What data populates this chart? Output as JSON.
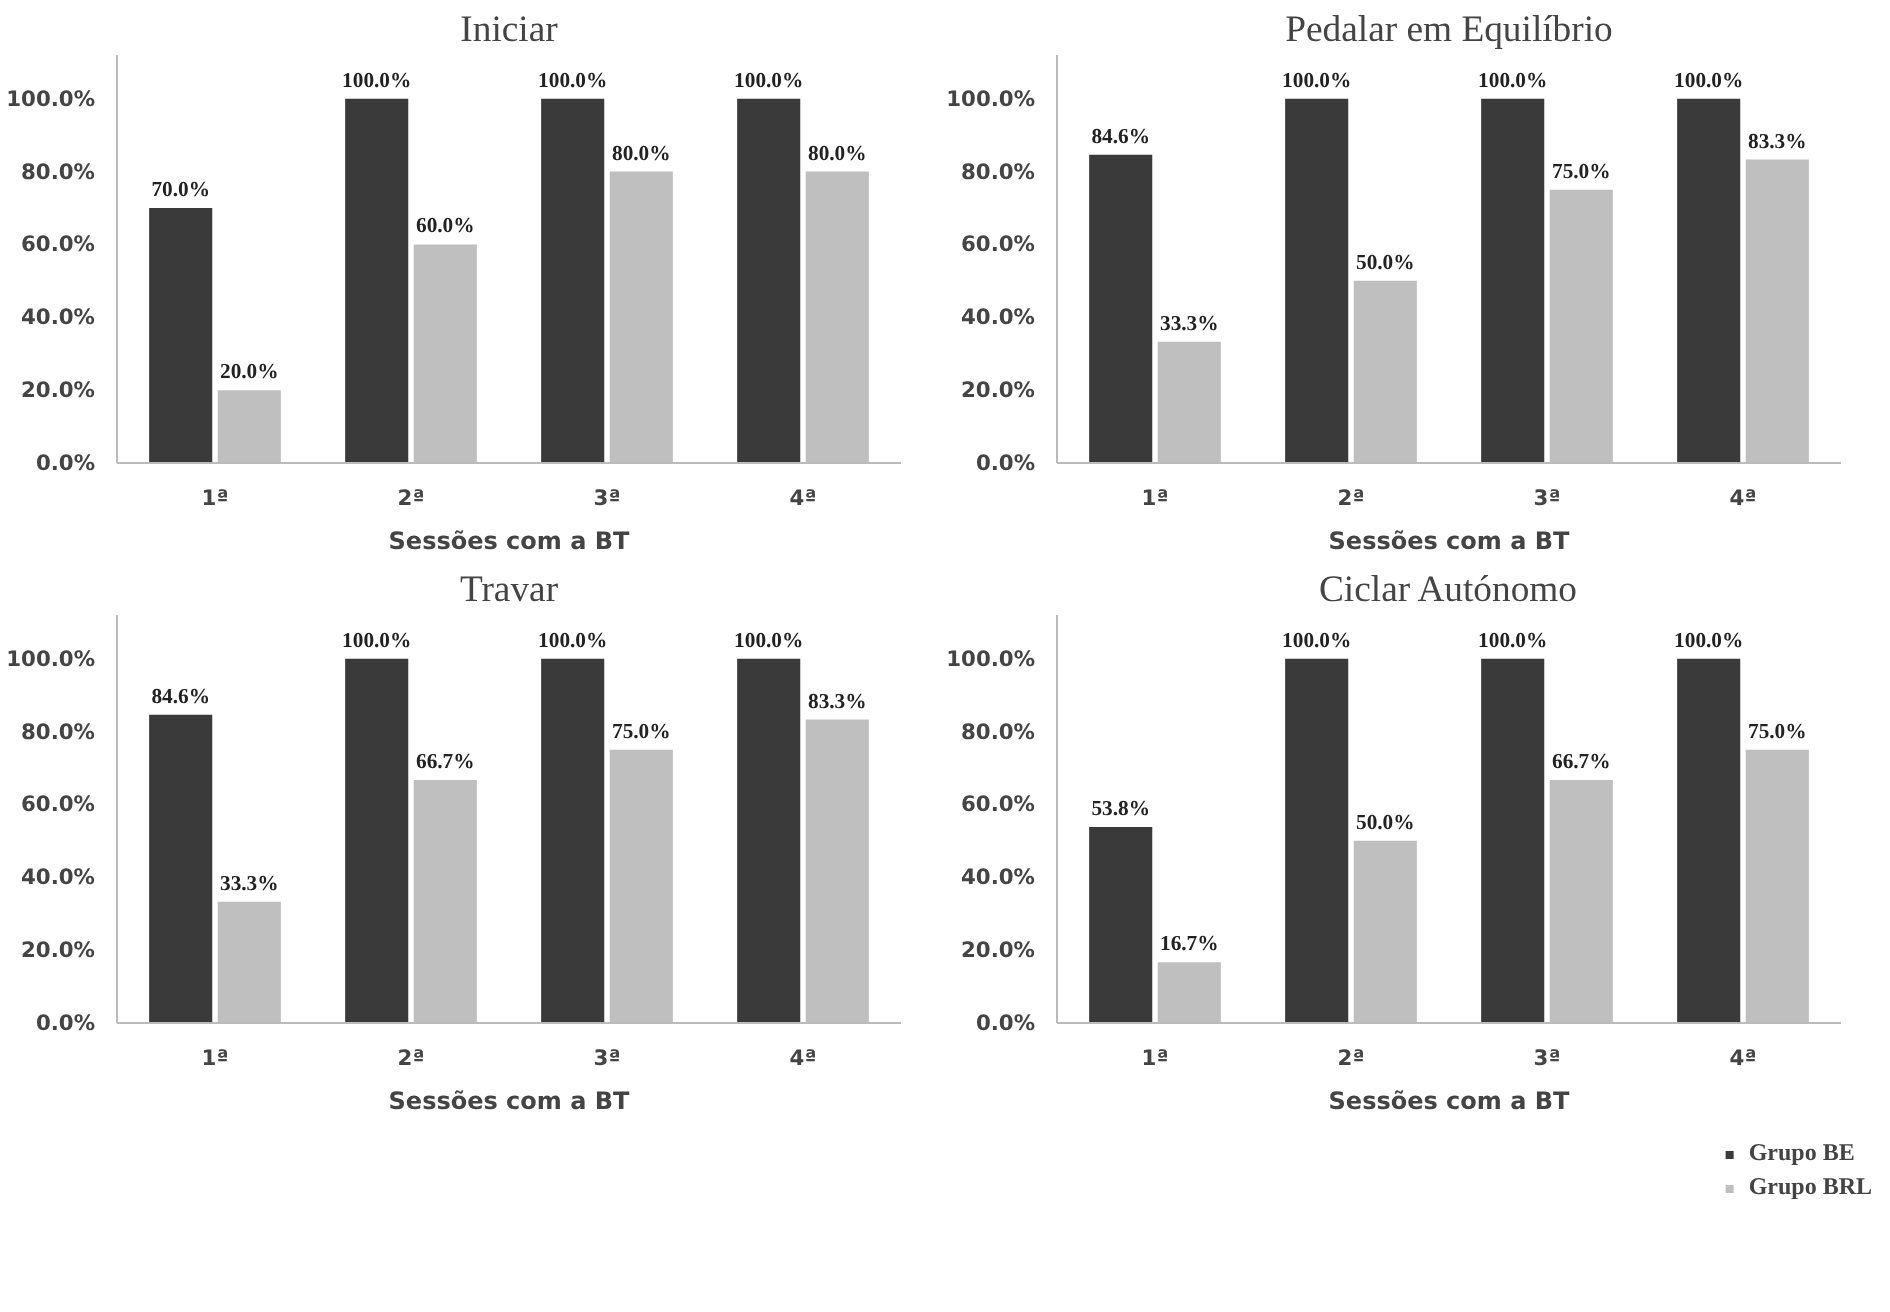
{
  "chart_data": [
    {
      "type": "bar",
      "title": "Iniciar",
      "xlabel": "Sessões com a BT",
      "categories": [
        "1ª",
        "2ª",
        "3ª",
        "4ª"
      ],
      "series": [
        {
          "color": "#3a3a3a",
          "values": [
            70,
            100,
            100,
            100
          ],
          "value_labels": [
            "70.0%",
            "100.0%",
            "100.0%",
            "100.0%"
          ]
        },
        {
          "color": "#bfbfbf",
          "values": [
            20,
            60,
            80,
            80
          ],
          "value_labels": [
            "20.0%",
            "60.0%",
            "80.0%",
            "80.0%"
          ]
        }
      ],
      "ylim": [
        0,
        112
      ],
      "yticks": [
        {
          "value": 0,
          "label": "0.0%"
        },
        {
          "value": 20,
          "label": "20.0%"
        },
        {
          "value": 40,
          "label": "40.0%"
        },
        {
          "value": 60,
          "label": "60.0%"
        },
        {
          "value": 80,
          "label": "80.0%"
        },
        {
          "value": 100,
          "label": "100.0%"
        }
      ],
      "grid": false
    },
    {
      "type": "bar",
      "title": "Pedalar em Equilíbrio",
      "xlabel": "Sessões com a BT",
      "categories": [
        "1ª",
        "2ª",
        "3ª",
        "4ª"
      ],
      "series": [
        {
          "color": "#3a3a3a",
          "values": [
            84.6,
            100,
            100,
            100
          ],
          "value_labels": [
            "84.6%",
            "100.0%",
            "100.0%",
            "100.0%"
          ]
        },
        {
          "color": "#bfbfbf",
          "values": [
            33.3,
            50,
            75,
            83.3
          ],
          "value_labels": [
            "33.3%",
            "50.0%",
            "75.0%",
            "83.3%"
          ]
        }
      ],
      "ylim": [
        0,
        112
      ],
      "yticks": [
        {
          "value": 0,
          "label": "0.0%"
        },
        {
          "value": 20,
          "label": "20.0%"
        },
        {
          "value": 40,
          "label": "40.0%"
        },
        {
          "value": 60,
          "label": "60.0%"
        },
        {
          "value": 80,
          "label": "80.0%"
        },
        {
          "value": 100,
          "label": "100.0%"
        }
      ],
      "grid": false
    },
    {
      "type": "bar",
      "title": "Travar",
      "xlabel": "Sessões com a BT",
      "categories": [
        "1ª",
        "2ª",
        "3ª",
        "4ª"
      ],
      "series": [
        {
          "color": "#3a3a3a",
          "values": [
            84.6,
            100,
            100,
            100
          ],
          "value_labels": [
            "84.6%",
            "100.0%",
            "100.0%",
            "100.0%"
          ]
        },
        {
          "color": "#bfbfbf",
          "values": [
            33.3,
            66.7,
            75,
            83.3
          ],
          "value_labels": [
            "33.3%",
            "66.7%",
            "75.0%",
            "83.3%"
          ]
        }
      ],
      "ylim": [
        0,
        112
      ],
      "yticks": [
        {
          "value": 0,
          "label": "0.0%"
        },
        {
          "value": 20,
          "label": "20.0%"
        },
        {
          "value": 40,
          "label": "40.0%"
        },
        {
          "value": 60,
          "label": "60.0%"
        },
        {
          "value": 80,
          "label": "80.0%"
        },
        {
          "value": 100,
          "label": "100.0%"
        }
      ],
      "grid": false
    },
    {
      "type": "bar",
      "title": "Ciclar Autónomo",
      "xlabel": "Sessões com a BT",
      "categories": [
        "1ª",
        "2ª",
        "3ª",
        "4ª"
      ],
      "series": [
        {
          "name": "Grupo BE",
          "color": "#3a3a3a",
          "values": [
            53.8,
            100,
            100,
            100
          ],
          "value_labels": [
            "53.8%",
            "100.0%",
            "100.0%",
            "100.0%"
          ]
        },
        {
          "name": "Grupo BRL",
          "color": "#bfbfbf",
          "values": [
            16.7,
            50,
            66.7,
            75
          ],
          "value_labels": [
            "16.7%",
            "50.0%",
            "66.7%",
            "75.0%"
          ]
        }
      ],
      "ylim": [
        0,
        112
      ],
      "yticks": [
        {
          "value": 0,
          "label": "0.0%"
        },
        {
          "value": 20,
          "label": "20.0%"
        },
        {
          "value": 40,
          "label": "40.0%"
        },
        {
          "value": 60,
          "label": "60.0%"
        },
        {
          "value": 80,
          "label": "80.0%"
        },
        {
          "value": 100,
          "label": "100.0%"
        }
      ],
      "grid": false,
      "legend": "bottom right"
    }
  ]
}
